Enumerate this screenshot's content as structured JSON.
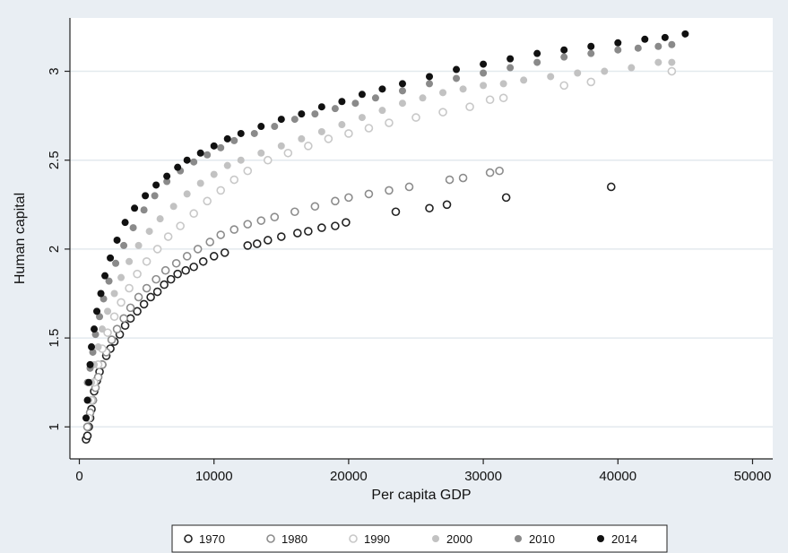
{
  "chart_data": {
    "type": "scatter",
    "title": "",
    "xlabel": "Per capita GDP",
    "ylabel": "Human capital",
    "xlim": [
      -700,
      51500
    ],
    "ylim": [
      0.82,
      3.3
    ],
    "xticks": [
      0,
      10000,
      20000,
      30000,
      40000,
      50000
    ],
    "xtick_labels": [
      "0",
      "10000",
      "20000",
      "30000",
      "40000",
      "50000"
    ],
    "yticks": [
      1,
      1.5,
      2,
      2.5,
      3
    ],
    "ytick_labels": [
      "1",
      "1.5",
      "2",
      "2.5",
      "3"
    ],
    "grid": true,
    "legend_position": "bottom",
    "colors": {
      "outer_background": "#e9eef3",
      "plot_background": "#ffffff",
      "gridline": "#e3e9ee",
      "axis": "#222222"
    },
    "series": [
      {
        "name": "1970",
        "marker": "hollow",
        "color": "#222222",
        "points": [
          [
            500,
            0.93
          ],
          [
            600,
            0.95
          ],
          [
            700,
            1.0
          ],
          [
            800,
            1.05
          ],
          [
            900,
            1.1
          ],
          [
            1000,
            1.15
          ],
          [
            1100,
            1.2
          ],
          [
            1300,
            1.26
          ],
          [
            1500,
            1.31
          ],
          [
            1700,
            1.35
          ],
          [
            2000,
            1.4
          ],
          [
            2300,
            1.44
          ],
          [
            2600,
            1.48
          ],
          [
            3000,
            1.52
          ],
          [
            3400,
            1.57
          ],
          [
            3800,
            1.61
          ],
          [
            4300,
            1.65
          ],
          [
            4800,
            1.69
          ],
          [
            5300,
            1.73
          ],
          [
            5800,
            1.76
          ],
          [
            6300,
            1.8
          ],
          [
            6800,
            1.83
          ],
          [
            7300,
            1.86
          ],
          [
            7900,
            1.88
          ],
          [
            8500,
            1.9
          ],
          [
            9200,
            1.93
          ],
          [
            10000,
            1.96
          ],
          [
            10800,
            1.98
          ],
          [
            12500,
            2.02
          ],
          [
            13200,
            2.03
          ],
          [
            14000,
            2.05
          ],
          [
            15000,
            2.07
          ],
          [
            16200,
            2.09
          ],
          [
            17000,
            2.1
          ],
          [
            18000,
            2.12
          ],
          [
            19000,
            2.13
          ],
          [
            19800,
            2.15
          ],
          [
            23500,
            2.21
          ],
          [
            26000,
            2.23
          ],
          [
            27300,
            2.25
          ],
          [
            31700,
            2.29
          ],
          [
            39500,
            2.35
          ]
        ]
      },
      {
        "name": "1980",
        "marker": "hollow",
        "color": "#8c8c8c",
        "points": [
          [
            600,
            1.0
          ],
          [
            800,
            1.08
          ],
          [
            1000,
            1.15
          ],
          [
            1200,
            1.22
          ],
          [
            1400,
            1.28
          ],
          [
            1700,
            1.35
          ],
          [
            2000,
            1.42
          ],
          [
            2400,
            1.49
          ],
          [
            2800,
            1.55
          ],
          [
            3300,
            1.61
          ],
          [
            3800,
            1.67
          ],
          [
            4400,
            1.73
          ],
          [
            5000,
            1.78
          ],
          [
            5700,
            1.83
          ],
          [
            6400,
            1.88
          ],
          [
            7200,
            1.92
          ],
          [
            8000,
            1.96
          ],
          [
            8800,
            2.0
          ],
          [
            9700,
            2.04
          ],
          [
            10500,
            2.08
          ],
          [
            11500,
            2.11
          ],
          [
            12500,
            2.14
          ],
          [
            13500,
            2.16
          ],
          [
            14500,
            2.18
          ],
          [
            16000,
            2.21
          ],
          [
            17500,
            2.24
          ],
          [
            19000,
            2.27
          ],
          [
            20000,
            2.29
          ],
          [
            21500,
            2.31
          ],
          [
            23000,
            2.33
          ],
          [
            24500,
            2.35
          ],
          [
            27500,
            2.39
          ],
          [
            28500,
            2.4
          ],
          [
            30500,
            2.43
          ],
          [
            31200,
            2.44
          ]
        ]
      },
      {
        "name": "1990",
        "marker": "hollow",
        "color": "#c8c8c8",
        "points": [
          [
            700,
            1.05
          ],
          [
            900,
            1.15
          ],
          [
            1100,
            1.25
          ],
          [
            1400,
            1.35
          ],
          [
            1700,
            1.44
          ],
          [
            2100,
            1.53
          ],
          [
            2600,
            1.62
          ],
          [
            3100,
            1.7
          ],
          [
            3700,
            1.78
          ],
          [
            4300,
            1.86
          ],
          [
            5000,
            1.93
          ],
          [
            5800,
            2.0
          ],
          [
            6600,
            2.07
          ],
          [
            7500,
            2.13
          ],
          [
            8500,
            2.2
          ],
          [
            9500,
            2.27
          ],
          [
            10500,
            2.33
          ],
          [
            11500,
            2.39
          ],
          [
            12500,
            2.44
          ],
          [
            14000,
            2.5
          ],
          [
            15500,
            2.54
          ],
          [
            17000,
            2.58
          ],
          [
            18500,
            2.62
          ],
          [
            20000,
            2.65
          ],
          [
            21500,
            2.68
          ],
          [
            23000,
            2.71
          ],
          [
            25000,
            2.74
          ],
          [
            27000,
            2.77
          ],
          [
            29000,
            2.8
          ],
          [
            30500,
            2.84
          ],
          [
            31500,
            2.85
          ],
          [
            36000,
            2.92
          ],
          [
            38000,
            2.94
          ],
          [
            44000,
            3.0
          ]
        ]
      },
      {
        "name": "2000",
        "marker": "filled",
        "color": "#c2c2c2",
        "points": [
          [
            700,
            1.15
          ],
          [
            900,
            1.25
          ],
          [
            1100,
            1.35
          ],
          [
            1400,
            1.45
          ],
          [
            1700,
            1.55
          ],
          [
            2100,
            1.65
          ],
          [
            2600,
            1.75
          ],
          [
            3100,
            1.84
          ],
          [
            3700,
            1.93
          ],
          [
            4400,
            2.02
          ],
          [
            5200,
            2.1
          ],
          [
            6000,
            2.17
          ],
          [
            7000,
            2.24
          ],
          [
            8000,
            2.31
          ],
          [
            9000,
            2.37
          ],
          [
            10000,
            2.42
          ],
          [
            11000,
            2.47
          ],
          [
            12000,
            2.5
          ],
          [
            13500,
            2.54
          ],
          [
            15000,
            2.58
          ],
          [
            16500,
            2.62
          ],
          [
            18000,
            2.66
          ],
          [
            19500,
            2.7
          ],
          [
            21000,
            2.74
          ],
          [
            22500,
            2.78
          ],
          [
            24000,
            2.82
          ],
          [
            25500,
            2.85
          ],
          [
            27000,
            2.88
          ],
          [
            28500,
            2.9
          ],
          [
            30000,
            2.92
          ],
          [
            31500,
            2.93
          ],
          [
            33000,
            2.95
          ],
          [
            35000,
            2.97
          ],
          [
            37000,
            2.99
          ],
          [
            39000,
            3.0
          ],
          [
            41000,
            3.02
          ],
          [
            43000,
            3.05
          ],
          [
            44000,
            3.05
          ]
        ]
      },
      {
        "name": "2010",
        "marker": "filled",
        "color": "#8a8a8a",
        "points": [
          [
            600,
            1.25
          ],
          [
            800,
            1.33
          ],
          [
            1000,
            1.42
          ],
          [
            1200,
            1.52
          ],
          [
            1500,
            1.62
          ],
          [
            1800,
            1.72
          ],
          [
            2200,
            1.82
          ],
          [
            2700,
            1.92
          ],
          [
            3300,
            2.02
          ],
          [
            4000,
            2.12
          ],
          [
            4800,
            2.22
          ],
          [
            5600,
            2.3
          ],
          [
            6500,
            2.38
          ],
          [
            7500,
            2.44
          ],
          [
            8500,
            2.49
          ],
          [
            9500,
            2.53
          ],
          [
            10500,
            2.57
          ],
          [
            11500,
            2.61
          ],
          [
            13000,
            2.65
          ],
          [
            14500,
            2.69
          ],
          [
            16000,
            2.73
          ],
          [
            17500,
            2.76
          ],
          [
            19000,
            2.79
          ],
          [
            20500,
            2.82
          ],
          [
            22000,
            2.85
          ],
          [
            24000,
            2.89
          ],
          [
            26000,
            2.93
          ],
          [
            28000,
            2.96
          ],
          [
            30000,
            2.99
          ],
          [
            32000,
            3.02
          ],
          [
            34000,
            3.05
          ],
          [
            36000,
            3.08
          ],
          [
            38000,
            3.1
          ],
          [
            40000,
            3.12
          ],
          [
            41500,
            3.13
          ],
          [
            43000,
            3.14
          ],
          [
            44000,
            3.15
          ]
        ]
      },
      {
        "name": "2014",
        "marker": "filled",
        "color": "#111111",
        "points": [
          [
            500,
            1.05
          ],
          [
            600,
            1.15
          ],
          [
            700,
            1.25
          ],
          [
            800,
            1.35
          ],
          [
            900,
            1.45
          ],
          [
            1100,
            1.55
          ],
          [
            1300,
            1.65
          ],
          [
            1600,
            1.75
          ],
          [
            1900,
            1.85
          ],
          [
            2300,
            1.95
          ],
          [
            2800,
            2.05
          ],
          [
            3400,
            2.15
          ],
          [
            4100,
            2.23
          ],
          [
            4900,
            2.3
          ],
          [
            5700,
            2.36
          ],
          [
            6500,
            2.41
          ],
          [
            7300,
            2.46
          ],
          [
            8000,
            2.5
          ],
          [
            9000,
            2.54
          ],
          [
            10000,
            2.58
          ],
          [
            11000,
            2.62
          ],
          [
            12000,
            2.65
          ],
          [
            13500,
            2.69
          ],
          [
            15000,
            2.73
          ],
          [
            16500,
            2.76
          ],
          [
            18000,
            2.8
          ],
          [
            19500,
            2.83
          ],
          [
            21000,
            2.87
          ],
          [
            22500,
            2.9
          ],
          [
            24000,
            2.93
          ],
          [
            26000,
            2.97
          ],
          [
            28000,
            3.01
          ],
          [
            30000,
            3.04
          ],
          [
            32000,
            3.07
          ],
          [
            34000,
            3.1
          ],
          [
            36000,
            3.12
          ],
          [
            38000,
            3.14
          ],
          [
            40000,
            3.16
          ],
          [
            42000,
            3.18
          ],
          [
            43500,
            3.19
          ],
          [
            45000,
            3.21
          ]
        ]
      }
    ]
  }
}
